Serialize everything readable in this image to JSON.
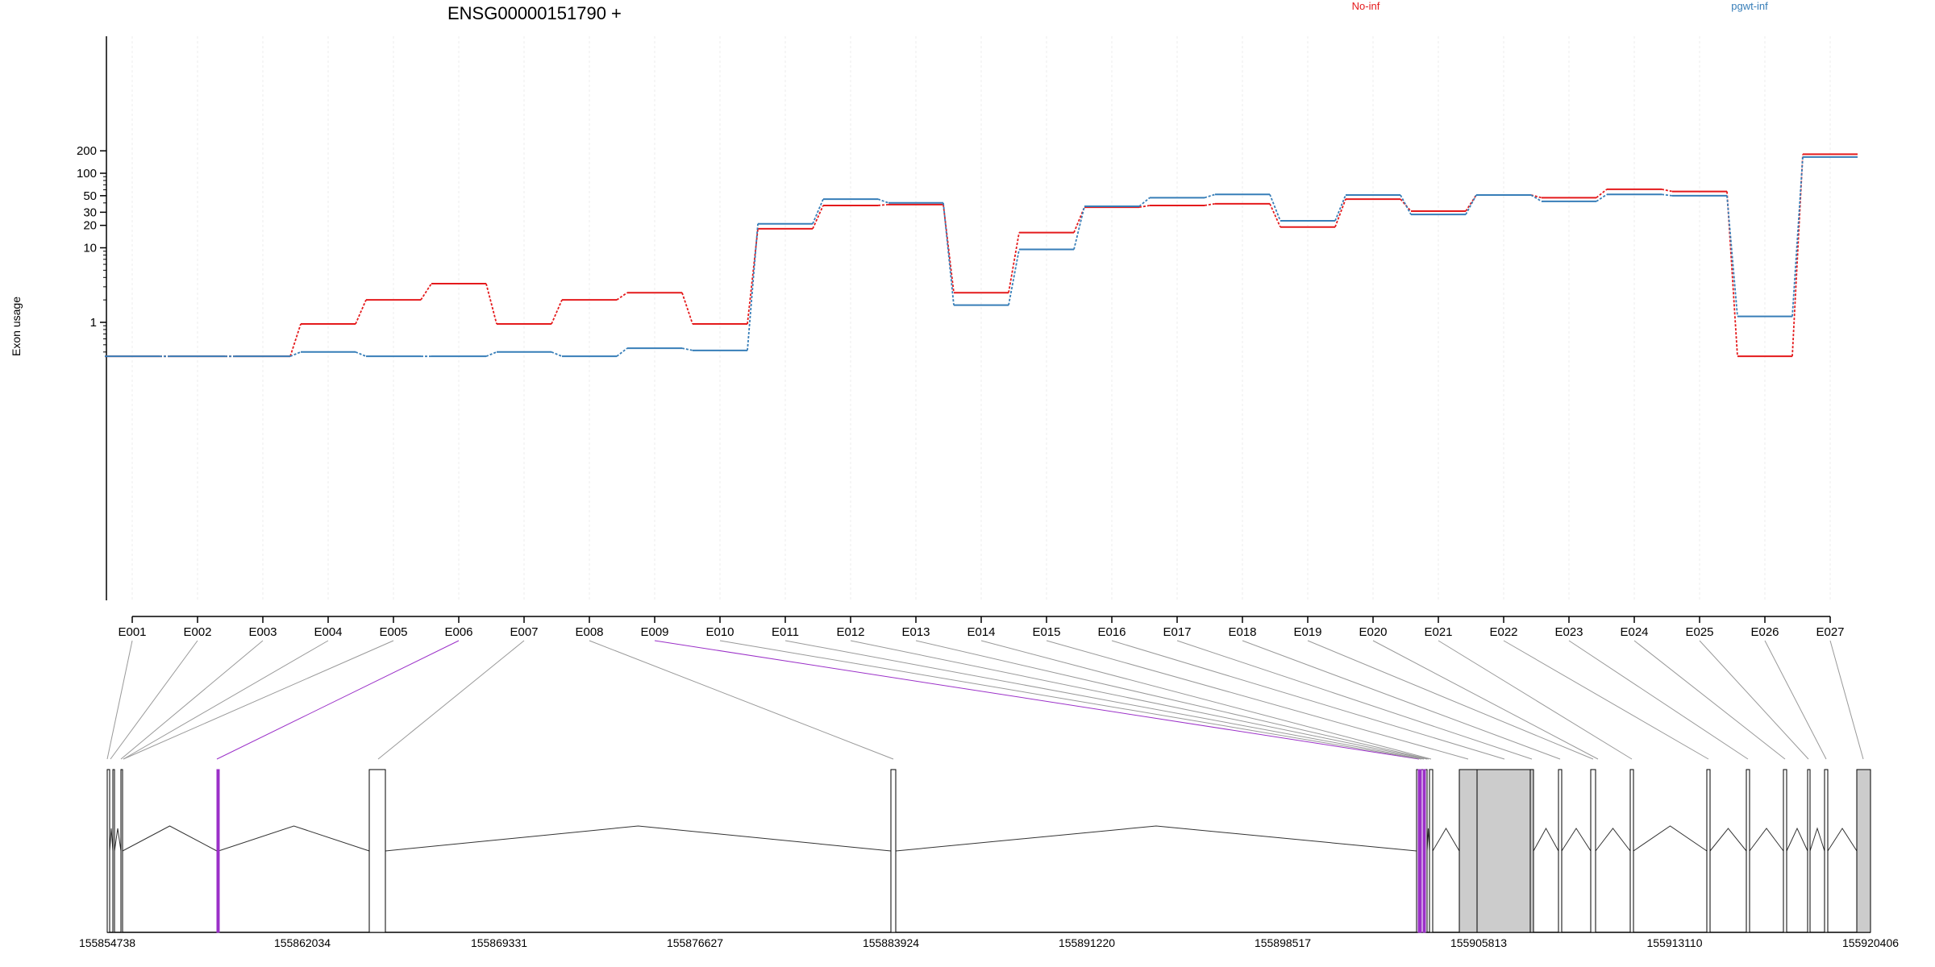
{
  "chart_data": {
    "type": "line",
    "title": "ENSG00000151790 +",
    "xlabel": "",
    "ylabel": "Exon usage",
    "y_scale": "log",
    "ylim": [
      0.3,
      220
    ],
    "y_ticks": [
      1,
      10,
      20,
      30,
      50,
      100,
      200
    ],
    "grid": "vertical",
    "legend_position": "top",
    "categories": [
      "E001",
      "E002",
      "E003",
      "E004",
      "E005",
      "E006",
      "E007",
      "E008",
      "E009",
      "E010",
      "E011",
      "E012",
      "E013",
      "E014",
      "E015",
      "E016",
      "E017",
      "E018",
      "E019",
      "E020",
      "E021",
      "E022",
      "E023",
      "E024",
      "E025",
      "E026",
      "E027"
    ],
    "series": [
      {
        "name": "No-inf",
        "color": "#e41a1c",
        "values": [
          0.35,
          0.35,
          0.35,
          0.95,
          2.0,
          3.3,
          0.95,
          2.0,
          2.5,
          0.95,
          18,
          37,
          38,
          2.5,
          16,
          35,
          37,
          39,
          19,
          45,
          31,
          51,
          47,
          61,
          57,
          0.35,
          180
        ]
      },
      {
        "name": "pgwt-inf",
        "color": "#377eb8",
        "values": [
          0.35,
          0.35,
          0.35,
          0.4,
          0.35,
          0.35,
          0.4,
          0.35,
          0.45,
          0.42,
          21,
          45,
          40,
          1.7,
          9.5,
          36,
          47,
          52,
          23,
          51,
          28,
          51,
          42,
          52,
          50,
          1.2,
          165
        ]
      }
    ],
    "gene_model": {
      "coordinate_labels": [
        "155854738",
        "155862034",
        "155869331",
        "155876627",
        "155883924",
        "155891220",
        "155898517",
        "155905813",
        "155913110",
        "155920406"
      ],
      "highlighted_exons": [
        "E006",
        "E009"
      ],
      "highlight_color": "#9b30c8",
      "exon_fill": "#cccccc"
    }
  }
}
